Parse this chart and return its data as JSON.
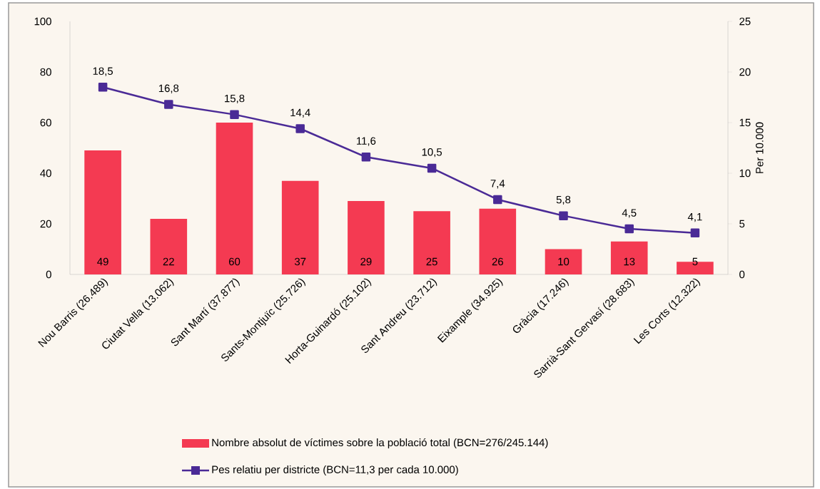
{
  "chart_data": {
    "type": "bar",
    "categories": [
      "Nou Barris (26.489)",
      "Ciutat Vella (13.062)",
      "Sant Martí (37.877)",
      "Sants-Montjuïc (25.726)",
      "Horta-Guinardó (25.102)",
      "Sant Andreu (23.712)",
      "Eixample (34.925)",
      "Gràcia (17.246)",
      "Sarrià-Sant Gervasí (28.683)",
      "Les Corts (12.322)"
    ],
    "series": [
      {
        "name": "Nombre absolut de víctimes sobre la població total (BCN=276/245.144)",
        "color": "#f43a52",
        "values": [
          49,
          22,
          60,
          37,
          29,
          25,
          26,
          10,
          13,
          5
        ],
        "value_labels": [
          "49",
          "22",
          "60",
          "37",
          "29",
          "25",
          "26",
          "10",
          "13",
          "5"
        ]
      },
      {
        "name": "Pes relatiu per districte (BCN=11,3 per cada 10.000)",
        "type": "line",
        "axis": "y2",
        "color": "#4a2a96",
        "values": [
          18.5,
          16.8,
          15.8,
          14.4,
          11.6,
          10.5,
          7.4,
          5.8,
          4.5,
          4.1
        ],
        "value_labels": [
          "18,5",
          "16,8",
          "15,8",
          "14,4",
          "11,6",
          "10,5",
          "7,4",
          "5,8",
          "4,5",
          "4,1"
        ]
      }
    ],
    "y2label": "Per 10.000",
    "ylim": [
      0,
      100
    ],
    "yticks": [
      0,
      20,
      40,
      60,
      80,
      100
    ],
    "y2lim": [
      0,
      25
    ],
    "y2ticks": [
      0,
      5,
      10,
      15,
      20,
      25
    ],
    "marker": "square",
    "legend": "bottom"
  }
}
